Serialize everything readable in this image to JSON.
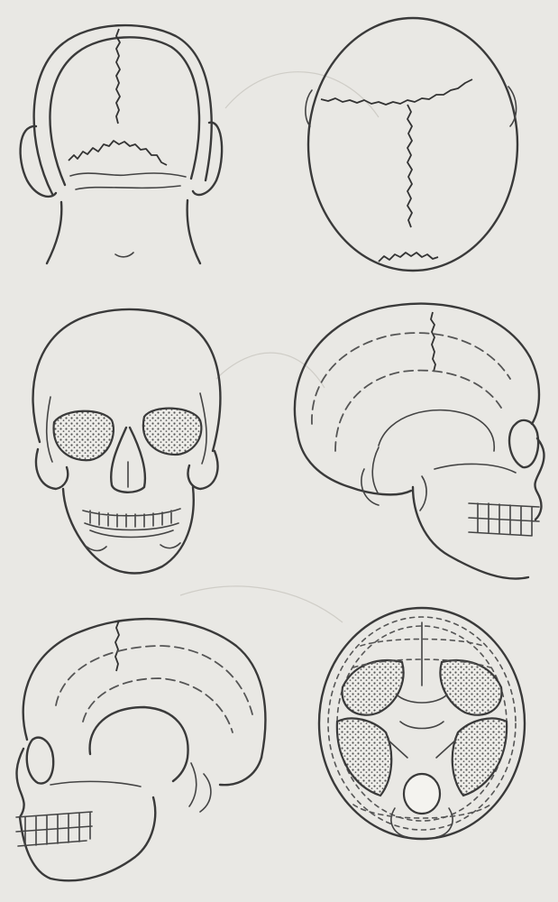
{
  "figure": {
    "panels": [
      {
        "id": "posterior-view",
        "row": 1,
        "col": 1
      },
      {
        "id": "superior-view",
        "row": 1,
        "col": 2
      },
      {
        "id": "anterior-view",
        "row": 2,
        "col": 1
      },
      {
        "id": "right-lateral-view",
        "row": 2,
        "col": 2
      },
      {
        "id": "left-lateral-view",
        "row": 3,
        "col": 1
      },
      {
        "id": "cranial-base-inferior-view",
        "row": 3,
        "col": 2
      }
    ],
    "colors": {
      "paper": "#e9e8e4",
      "ink": "#3a3a3a"
    }
  }
}
